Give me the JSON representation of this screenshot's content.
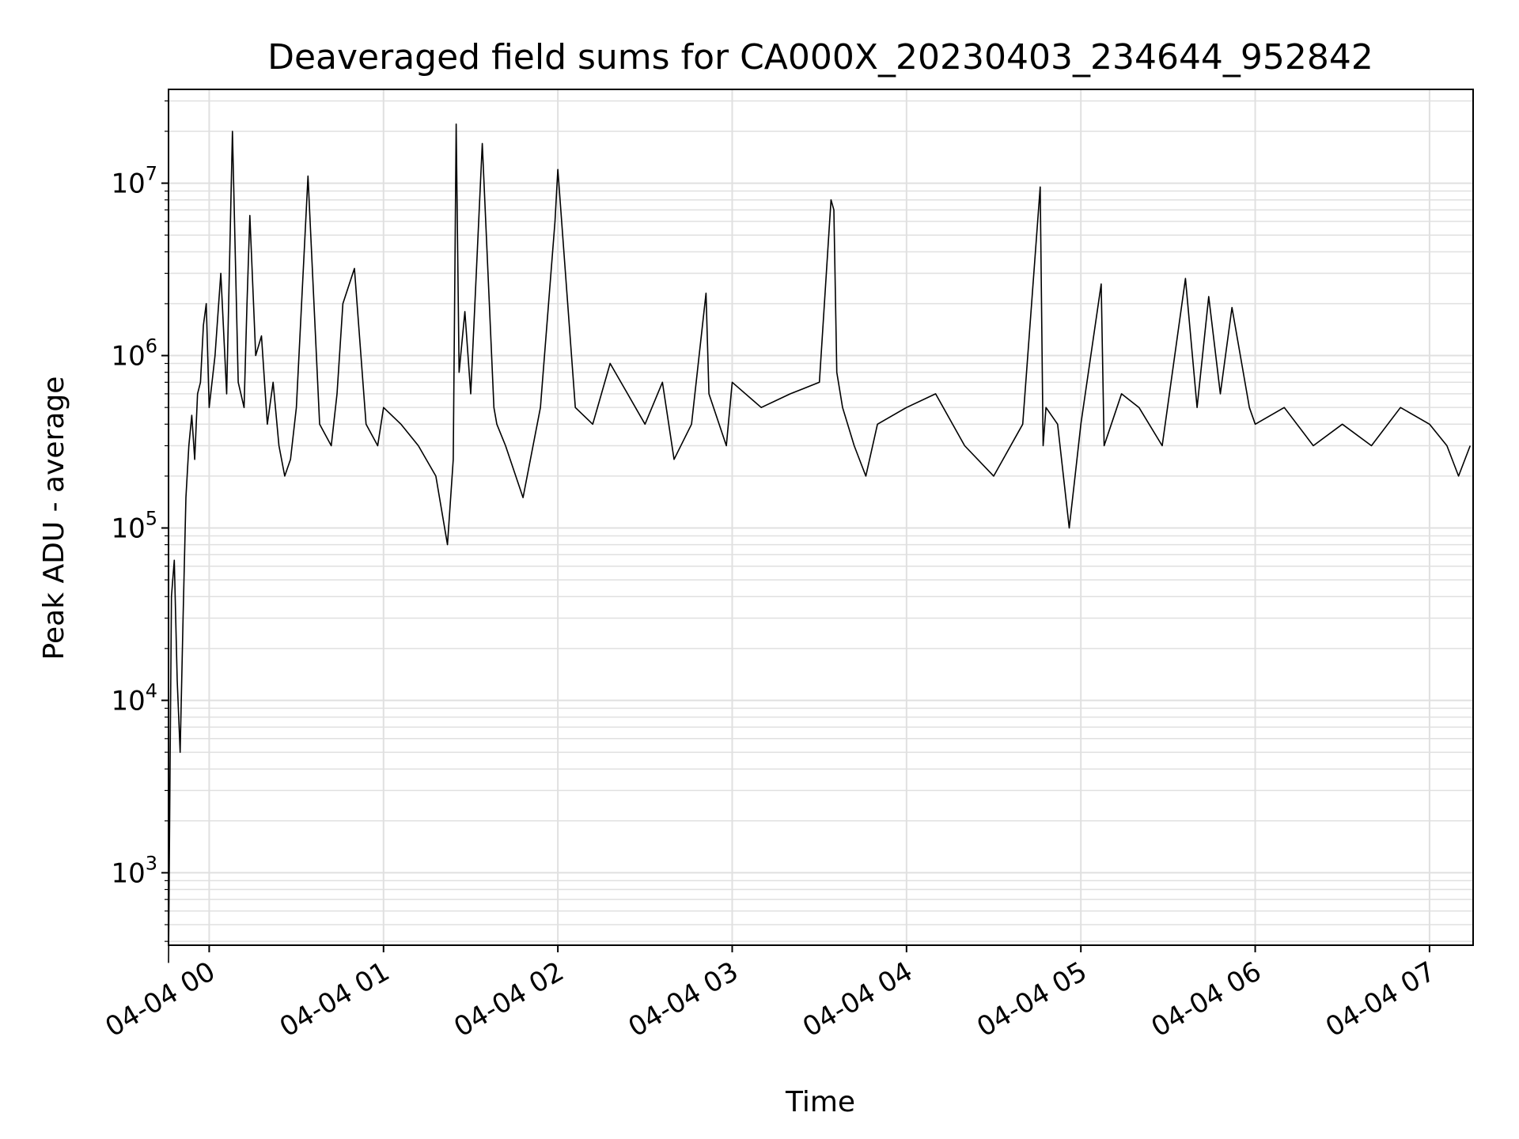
{
  "chart_data": {
    "type": "line",
    "title": "Deaveraged field sums for CA000X_20230403_234644_952842",
    "xlabel": "Time",
    "ylabel": "Peak ADU - average",
    "yscale": "log",
    "ylim": [
      380,
      35000000
    ],
    "xlim": [
      "2023-04-03 23:46",
      "2023-04-04 07:15"
    ],
    "grid": true,
    "line_color": "#000000",
    "grid_color": "#e0e0e0",
    "x_ticks": [
      {
        "t": "2023-04-04 00:00",
        "label": "04-04 00"
      },
      {
        "t": "2023-04-04 01:00",
        "label": "04-04 01"
      },
      {
        "t": "2023-04-04 02:00",
        "label": "04-04 02"
      },
      {
        "t": "2023-04-04 03:00",
        "label": "04-04 03"
      },
      {
        "t": "2023-04-04 04:00",
        "label": "04-04 04"
      },
      {
        "t": "2023-04-04 05:00",
        "label": "04-04 05"
      },
      {
        "t": "2023-04-04 06:00",
        "label": "04-04 06"
      },
      {
        "t": "2023-04-04 07:00",
        "label": "04-04 07"
      }
    ],
    "y_ticks": [
      {
        "value": 1000,
        "base": "10",
        "exp": "3"
      },
      {
        "value": 10000,
        "base": "10",
        "exp": "4"
      },
      {
        "value": 100000,
        "base": "10",
        "exp": "5"
      },
      {
        "value": 1000000,
        "base": "10",
        "exp": "6"
      },
      {
        "value": 10000000,
        "base": "10",
        "exp": "7"
      }
    ],
    "series": [
      {
        "x": [
          "2023-04-03 23:46",
          "2023-04-03 23:47",
          "2023-04-03 23:48",
          "2023-04-03 23:49",
          "2023-04-03 23:50",
          "2023-04-03 23:51",
          "2023-04-03 23:52",
          "2023-04-03 23:53",
          "2023-04-03 23:54",
          "2023-04-03 23:55",
          "2023-04-03 23:56",
          "2023-04-03 23:57",
          "2023-04-03 23:58",
          "2023-04-03 23:59",
          "2023-04-04 00:00",
          "2023-04-04 00:02",
          "2023-04-04 00:04",
          "2023-04-04 00:06",
          "2023-04-04 00:08",
          "2023-04-04 00:10",
          "2023-04-04 00:12",
          "2023-04-04 00:13",
          "2023-04-04 00:14",
          "2023-04-04 00:16",
          "2023-04-04 00:18",
          "2023-04-04 00:20",
          "2023-04-04 00:22",
          "2023-04-04 00:24",
          "2023-04-04 00:26",
          "2023-04-04 00:28",
          "2023-04-04 00:30",
          "2023-04-04 00:34",
          "2023-04-04 00:38",
          "2023-04-04 00:42",
          "2023-04-04 00:44",
          "2023-04-04 00:46",
          "2023-04-04 00:50",
          "2023-04-04 00:54",
          "2023-04-04 00:58",
          "2023-04-04 01:00",
          "2023-04-04 01:06",
          "2023-04-04 01:12",
          "2023-04-04 01:18",
          "2023-04-04 01:22",
          "2023-04-04 01:24",
          "2023-04-04 01:25",
          "2023-04-04 01:26",
          "2023-04-04 01:28",
          "2023-04-04 01:30",
          "2023-04-04 01:34",
          "2023-04-04 01:38",
          "2023-04-04 01:39",
          "2023-04-04 01:42",
          "2023-04-04 01:48",
          "2023-04-04 01:54",
          "2023-04-04 01:59",
          "2023-04-04 02:00",
          "2023-04-04 02:06",
          "2023-04-04 02:12",
          "2023-04-04 02:18",
          "2023-04-04 02:24",
          "2023-04-04 02:30",
          "2023-04-04 02:36",
          "2023-04-04 02:40",
          "2023-04-04 02:46",
          "2023-04-04 02:51",
          "2023-04-04 02:52",
          "2023-04-04 02:58",
          "2023-04-04 03:00",
          "2023-04-04 03:10",
          "2023-04-04 03:20",
          "2023-04-04 03:30",
          "2023-04-04 03:34",
          "2023-04-04 03:35",
          "2023-04-04 03:36",
          "2023-04-04 03:38",
          "2023-04-04 03:42",
          "2023-04-04 03:46",
          "2023-04-04 03:50",
          "2023-04-04 04:00",
          "2023-04-04 04:10",
          "2023-04-04 04:20",
          "2023-04-04 04:30",
          "2023-04-04 04:40",
          "2023-04-04 04:46",
          "2023-04-04 04:47",
          "2023-04-04 04:48",
          "2023-04-04 04:52",
          "2023-04-04 04:56",
          "2023-04-04 04:58",
          "2023-04-04 05:00",
          "2023-04-04 05:07",
          "2023-04-04 05:08",
          "2023-04-04 05:14",
          "2023-04-04 05:20",
          "2023-04-04 05:28",
          "2023-04-04 05:36",
          "2023-04-04 05:40",
          "2023-04-04 05:44",
          "2023-04-04 05:48",
          "2023-04-04 05:52",
          "2023-04-04 05:58",
          "2023-04-04 06:00",
          "2023-04-04 06:10",
          "2023-04-04 06:20",
          "2023-04-04 06:30",
          "2023-04-04 06:40",
          "2023-04-04 06:50",
          "2023-04-04 07:00",
          "2023-04-04 07:06",
          "2023-04-04 07:10",
          "2023-04-04 07:14"
        ],
        "values": [
          300,
          40000,
          65000,
          13000,
          5000,
          30000,
          150000,
          300000,
          450000,
          250000,
          600000,
          700000,
          1500000,
          2000000,
          500000,
          1000000,
          3000000,
          600000,
          20000000,
          700000,
          500000,
          2000000,
          6500000,
          1000000,
          1300000,
          400000,
          700000,
          300000,
          200000,
          250000,
          500000,
          11000000,
          400000,
          300000,
          600000,
          2000000,
          3200000,
          400000,
          300000,
          500000,
          400000,
          300000,
          200000,
          80000,
          250000,
          22000000,
          800000,
          1800000,
          600000,
          17000000,
          500000,
          400000,
          300000,
          150000,
          500000,
          6000000,
          12000000,
          500000,
          400000,
          900000,
          600000,
          400000,
          700000,
          250000,
          400000,
          2300000,
          600000,
          300000,
          700000,
          500000,
          600000,
          700000,
          8000000,
          7000000,
          800000,
          500000,
          300000,
          200000,
          400000,
          500000,
          600000,
          300000,
          200000,
          400000,
          9500000,
          300000,
          500000,
          400000,
          100000,
          200000,
          400000,
          2600000,
          300000,
          600000,
          500000,
          300000,
          2800000,
          500000,
          2200000,
          600000,
          1900000,
          500000,
          400000,
          500000,
          300000,
          400000,
          300000,
          500000,
          400000,
          300000,
          200000,
          300000
        ]
      }
    ]
  }
}
